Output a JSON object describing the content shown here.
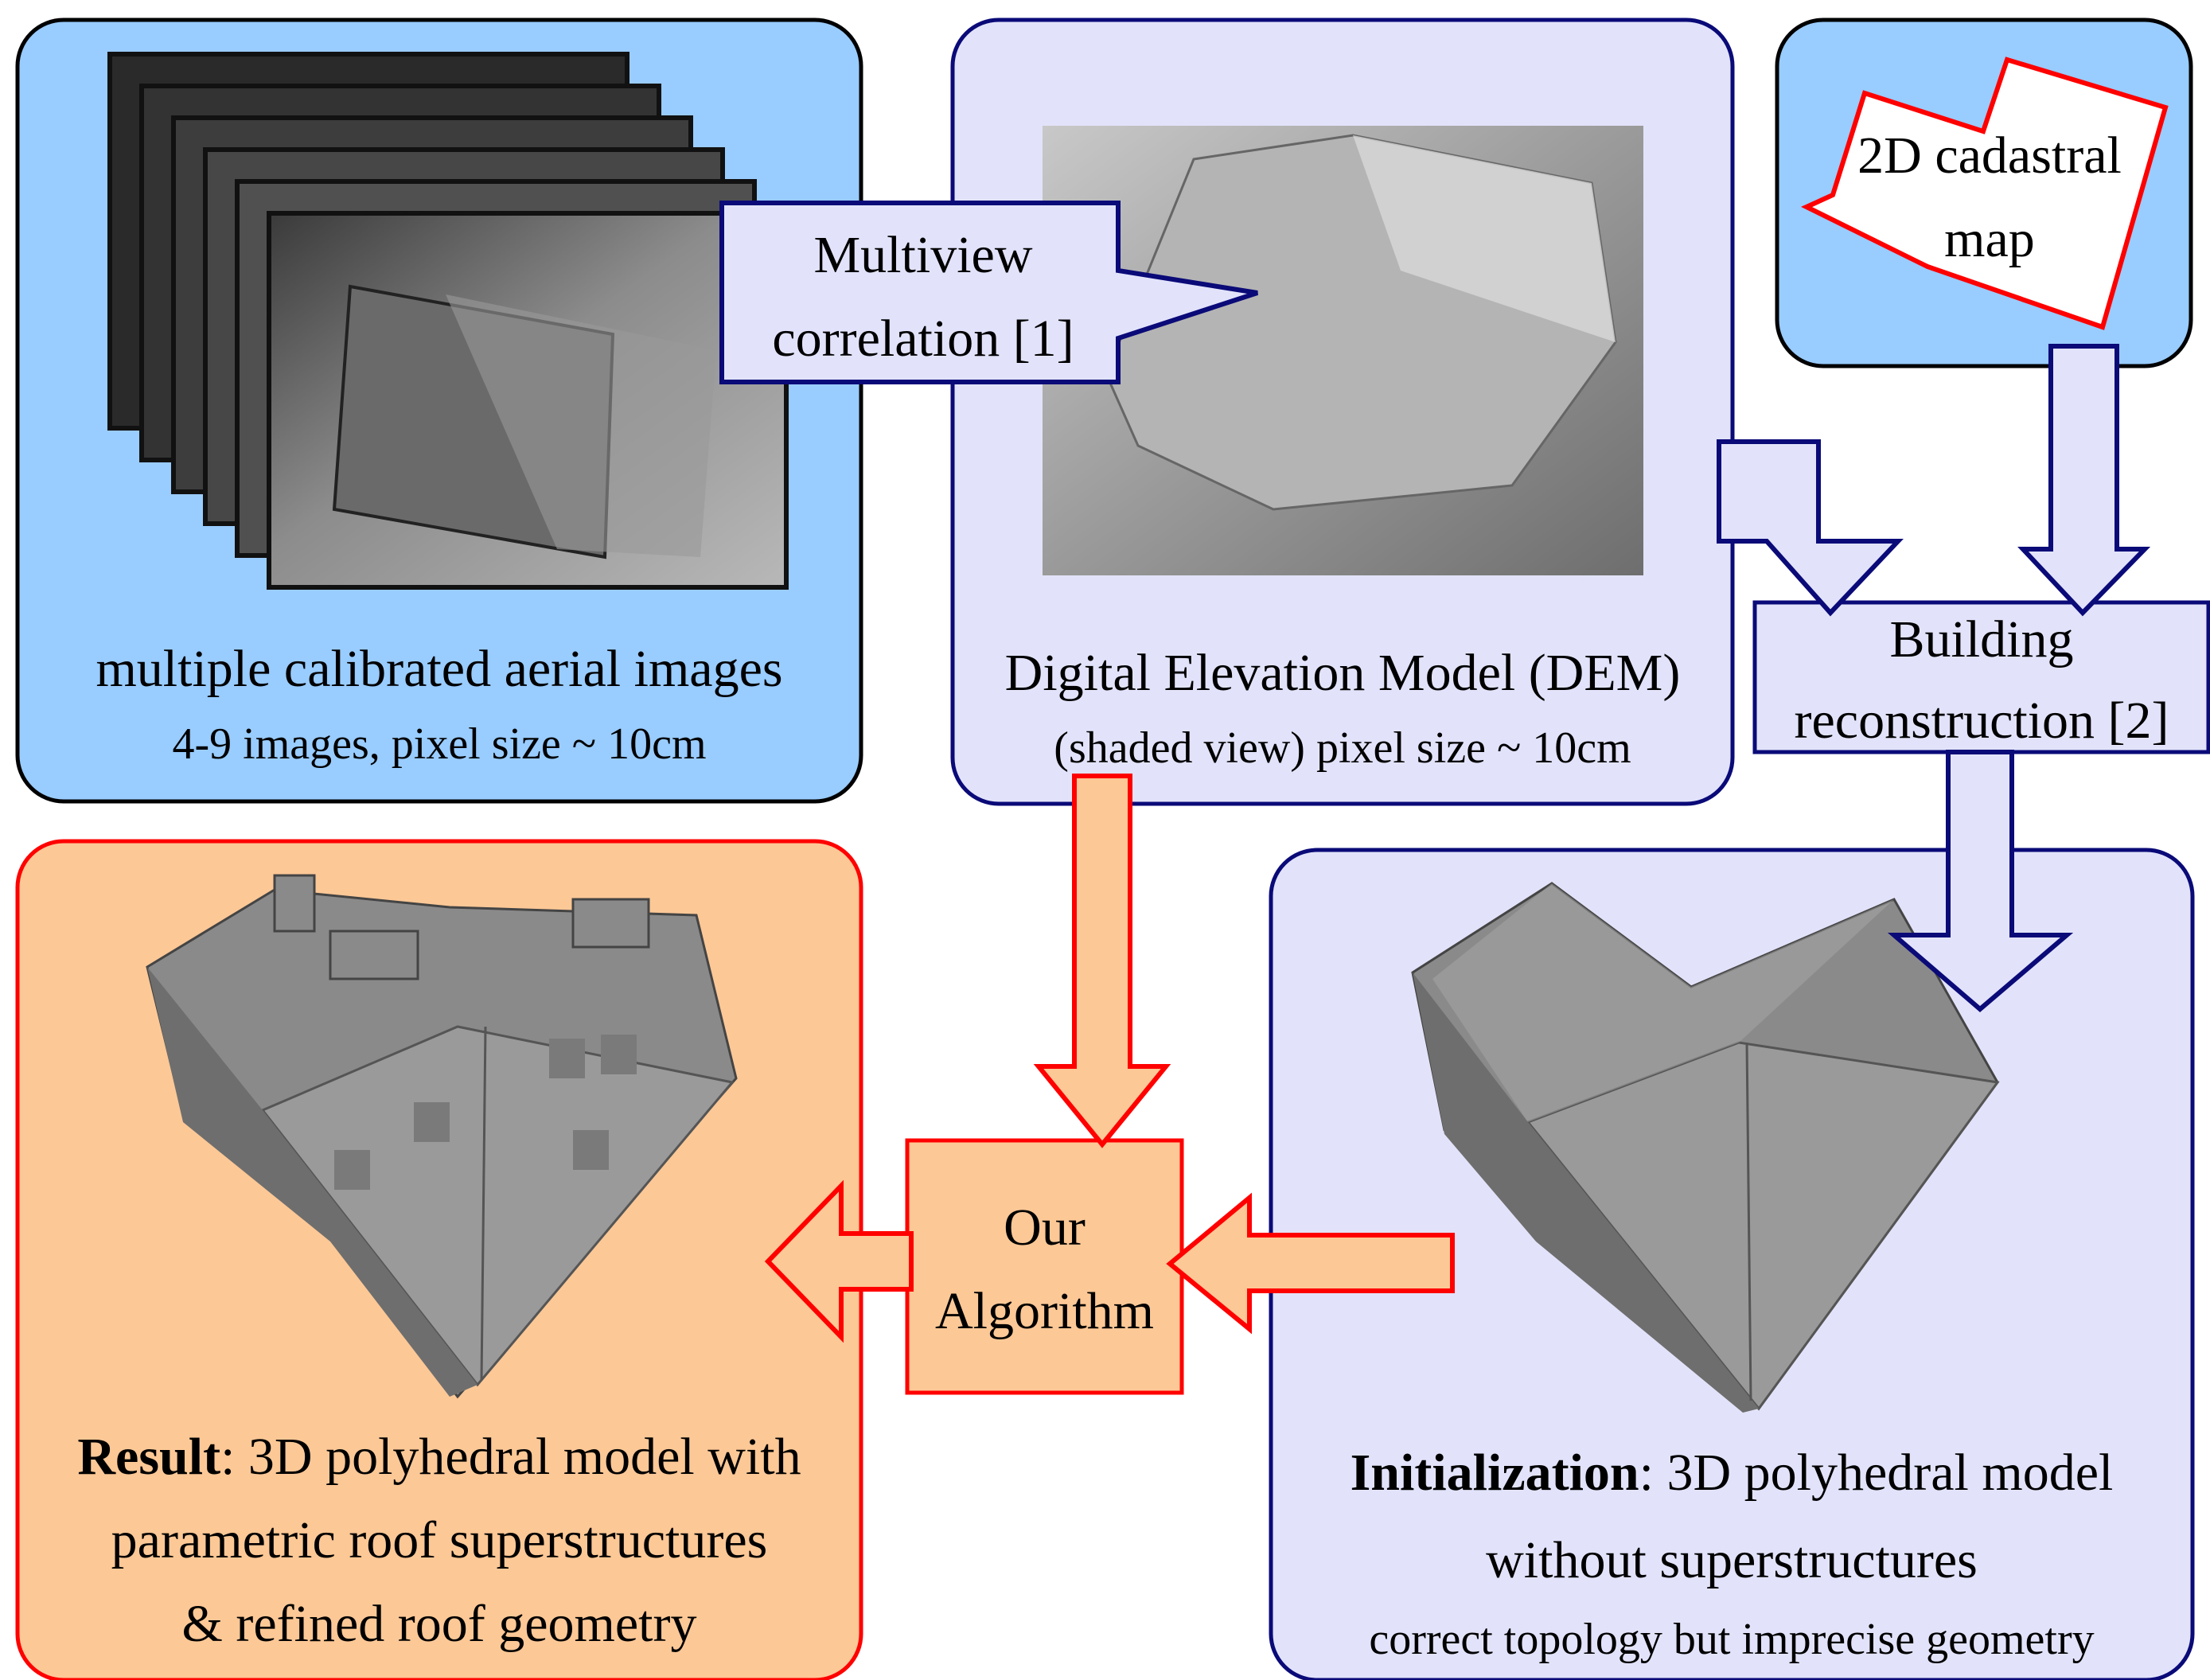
{
  "panels": {
    "aerial": {
      "caption": "multiple calibrated aerial images",
      "subcaption": "4-9 images, pixel size ~ 10cm"
    },
    "dem": {
      "caption": "Digital Elevation Model (DEM)",
      "subcaption": "(shaded view) pixel size ~ 10cm"
    },
    "cadastral": {
      "label_line1": "2D cadastral",
      "label_line2": "map"
    },
    "result": {
      "bold": "Result",
      "line1_rest": ": 3D polyhedral model with",
      "line2": "parametric roof superstructures",
      "line3": "& refined roof geometry"
    },
    "initialization": {
      "bold": "Initialization",
      "line1_rest": ": 3D polyhedral model",
      "line2": "without superstructures",
      "line3": "correct topology but imprecise geometry"
    }
  },
  "steps": {
    "multiview": {
      "line1": "Multiview",
      "line2": "correlation [1]"
    },
    "building": {
      "line1": "Building",
      "line2": "reconstruction [2]"
    },
    "algorithm": {
      "line1": "Our",
      "line2": "Algorithm"
    }
  },
  "colors": {
    "blue_fill": "#99ccff",
    "lavender_fill": "#e2e3fa",
    "orange_fill": "#fcc896",
    "navy_border": "#0a0a78",
    "red_border": "#ff0000"
  }
}
